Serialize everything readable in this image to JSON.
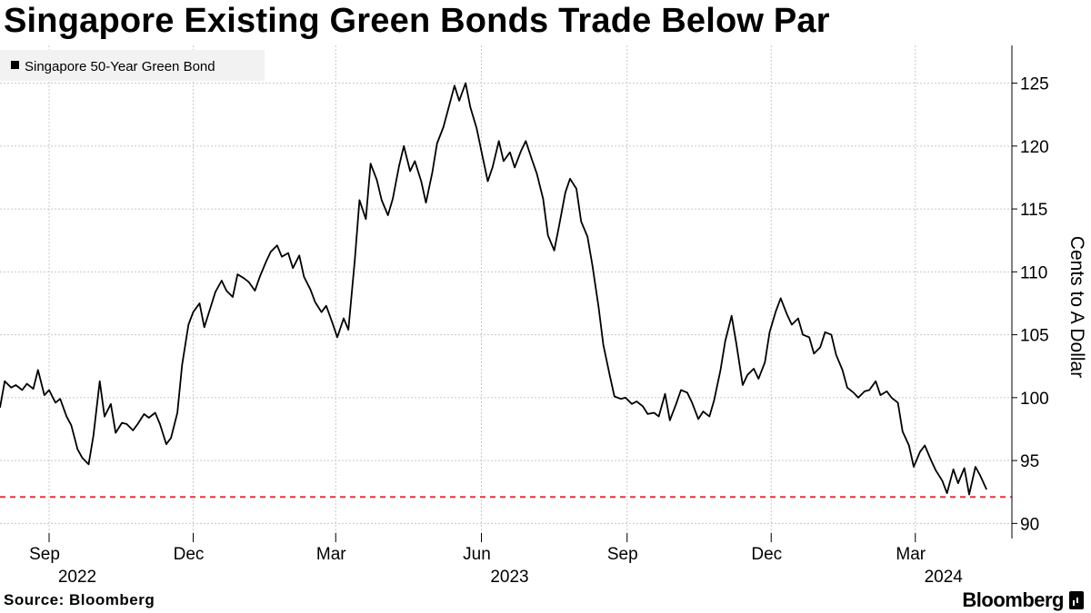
{
  "title": "Singapore Existing Green Bonds Trade Below Par",
  "source": "Source: Bloomberg",
  "brand": "Bloomberg",
  "colors": {
    "line": "#000000",
    "reference": "#e0393e",
    "grid": "#c8c8c8",
    "legend_bg": "#f2f2f2"
  },
  "chart_data": {
    "type": "line",
    "title": "Singapore Existing Green Bonds Trade Below Par",
    "ylabel": "Cents to A Dollar",
    "y_axis_position": "right",
    "ylim": [
      88.8,
      128
    ],
    "yticks": [
      90,
      95,
      100,
      105,
      110,
      115,
      120,
      125
    ],
    "xlim": [
      "2022-08-01",
      "2024-05-01"
    ],
    "month_ticks": [
      {
        "label": "Sep",
        "date": "2022-09-01"
      },
      {
        "label": "Dec",
        "date": "2022-12-01"
      },
      {
        "label": "Mar",
        "date": "2023-03-01"
      },
      {
        "label": "Jun",
        "date": "2023-06-01"
      },
      {
        "label": "Sep",
        "date": "2023-09-01"
      },
      {
        "label": "Dec",
        "date": "2023-12-01"
      },
      {
        "label": "Mar",
        "date": "2024-03-01"
      }
    ],
    "year_ticks": [
      {
        "label": "2022",
        "date": "2022-09-01"
      },
      {
        "label": "2023",
        "date": "2023-06-01"
      },
      {
        "label": "2024",
        "date": "2024-03-01"
      }
    ],
    "grid": true,
    "legend_position": "top-left",
    "reference_line": {
      "y": 92.1,
      "style": "dashed"
    },
    "series": [
      {
        "name": "Singapore 50-Year Green Bond",
        "points": [
          [
            "2022-08-01",
            99.2
          ],
          [
            "2022-08-04",
            101.3
          ],
          [
            "2022-08-08",
            100.8
          ],
          [
            "2022-08-11",
            101.0
          ],
          [
            "2022-08-15",
            100.6
          ],
          [
            "2022-08-18",
            101.1
          ],
          [
            "2022-08-22",
            100.7
          ],
          [
            "2022-08-25",
            102.2
          ],
          [
            "2022-08-29",
            100.2
          ],
          [
            "2022-09-01",
            100.6
          ],
          [
            "2022-09-05",
            99.6
          ],
          [
            "2022-09-08",
            99.9
          ],
          [
            "2022-09-12",
            98.5
          ],
          [
            "2022-09-15",
            97.8
          ],
          [
            "2022-09-19",
            95.9
          ],
          [
            "2022-09-22",
            95.2
          ],
          [
            "2022-09-26",
            94.7
          ],
          [
            "2022-09-29",
            97.0
          ],
          [
            "2022-10-03",
            101.3
          ],
          [
            "2022-10-06",
            98.5
          ],
          [
            "2022-10-10",
            99.5
          ],
          [
            "2022-10-13",
            97.2
          ],
          [
            "2022-10-17",
            98.0
          ],
          [
            "2022-10-20",
            97.9
          ],
          [
            "2022-10-24",
            97.4
          ],
          [
            "2022-10-27",
            97.9
          ],
          [
            "2022-10-31",
            98.7
          ],
          [
            "2022-11-03",
            98.4
          ],
          [
            "2022-11-07",
            98.8
          ],
          [
            "2022-11-10",
            97.9
          ],
          [
            "2022-11-14",
            96.3
          ],
          [
            "2022-11-17",
            96.8
          ],
          [
            "2022-11-21",
            98.8
          ],
          [
            "2022-11-24",
            102.6
          ],
          [
            "2022-11-28",
            105.8
          ],
          [
            "2022-12-01",
            106.8
          ],
          [
            "2022-12-05",
            107.5
          ],
          [
            "2022-12-08",
            105.6
          ],
          [
            "2022-12-12",
            107.2
          ],
          [
            "2022-12-15",
            108.4
          ],
          [
            "2022-12-19",
            109.3
          ],
          [
            "2022-12-22",
            108.5
          ],
          [
            "2022-12-26",
            108.0
          ],
          [
            "2022-12-29",
            109.8
          ],
          [
            "2023-01-02",
            109.5
          ],
          [
            "2023-01-05",
            109.2
          ],
          [
            "2023-01-09",
            108.5
          ],
          [
            "2023-01-12",
            109.6
          ],
          [
            "2023-01-16",
            110.8
          ],
          [
            "2023-01-19",
            111.6
          ],
          [
            "2023-01-23",
            112.1
          ],
          [
            "2023-01-26",
            111.2
          ],
          [
            "2023-01-30",
            111.5
          ],
          [
            "2023-02-02",
            110.3
          ],
          [
            "2023-02-06",
            111.3
          ],
          [
            "2023-02-09",
            109.6
          ],
          [
            "2023-02-13",
            108.6
          ],
          [
            "2023-02-16",
            107.6
          ],
          [
            "2023-02-20",
            106.8
          ],
          [
            "2023-02-23",
            107.3
          ],
          [
            "2023-02-27",
            105.9
          ],
          [
            "2023-03-02",
            104.8
          ],
          [
            "2023-03-06",
            106.3
          ],
          [
            "2023-03-09",
            105.4
          ],
          [
            "2023-03-13",
            110.9
          ],
          [
            "2023-03-16",
            115.7
          ],
          [
            "2023-03-20",
            114.2
          ],
          [
            "2023-03-23",
            118.6
          ],
          [
            "2023-03-27",
            117.3
          ],
          [
            "2023-03-30",
            115.7
          ],
          [
            "2023-04-03",
            114.5
          ],
          [
            "2023-04-06",
            115.8
          ],
          [
            "2023-04-10",
            118.4
          ],
          [
            "2023-04-13",
            120.0
          ],
          [
            "2023-04-17",
            118.0
          ],
          [
            "2023-04-20",
            118.8
          ],
          [
            "2023-04-24",
            117.2
          ],
          [
            "2023-04-27",
            115.5
          ],
          [
            "2023-05-01",
            117.9
          ],
          [
            "2023-05-04",
            120.2
          ],
          [
            "2023-05-08",
            121.5
          ],
          [
            "2023-05-11",
            122.9
          ],
          [
            "2023-05-15",
            124.8
          ],
          [
            "2023-05-18",
            123.6
          ],
          [
            "2023-05-22",
            125.0
          ],
          [
            "2023-05-25",
            123.1
          ],
          [
            "2023-05-29",
            121.4
          ],
          [
            "2023-06-01",
            119.6
          ],
          [
            "2023-06-05",
            117.2
          ],
          [
            "2023-06-08",
            118.3
          ],
          [
            "2023-06-12",
            120.4
          ],
          [
            "2023-06-15",
            118.8
          ],
          [
            "2023-06-19",
            119.5
          ],
          [
            "2023-06-22",
            118.3
          ],
          [
            "2023-06-26",
            119.6
          ],
          [
            "2023-06-29",
            120.4
          ],
          [
            "2023-07-03",
            118.9
          ],
          [
            "2023-07-06",
            117.8
          ],
          [
            "2023-07-10",
            115.8
          ],
          [
            "2023-07-13",
            112.9
          ],
          [
            "2023-07-17",
            111.7
          ],
          [
            "2023-07-20",
            113.6
          ],
          [
            "2023-07-24",
            116.3
          ],
          [
            "2023-07-27",
            117.4
          ],
          [
            "2023-07-31",
            116.6
          ],
          [
            "2023-08-03",
            114.0
          ],
          [
            "2023-08-07",
            112.8
          ],
          [
            "2023-08-10",
            110.6
          ],
          [
            "2023-08-14",
            107.2
          ],
          [
            "2023-08-17",
            104.2
          ],
          [
            "2023-08-21",
            101.8
          ],
          [
            "2023-08-24",
            100.1
          ],
          [
            "2023-08-28",
            99.9
          ],
          [
            "2023-08-31",
            100.0
          ],
          [
            "2023-09-04",
            99.5
          ],
          [
            "2023-09-07",
            99.7
          ],
          [
            "2023-09-11",
            99.3
          ],
          [
            "2023-09-14",
            98.7
          ],
          [
            "2023-09-18",
            98.8
          ],
          [
            "2023-09-21",
            98.5
          ],
          [
            "2023-09-25",
            100.3
          ],
          [
            "2023-09-28",
            98.2
          ],
          [
            "2023-10-02",
            99.5
          ],
          [
            "2023-10-05",
            100.6
          ],
          [
            "2023-10-09",
            100.4
          ],
          [
            "2023-10-12",
            99.6
          ],
          [
            "2023-10-16",
            98.3
          ],
          [
            "2023-10-19",
            98.9
          ],
          [
            "2023-10-23",
            98.5
          ],
          [
            "2023-10-26",
            99.8
          ],
          [
            "2023-10-30",
            102.2
          ],
          [
            "2023-11-02",
            104.5
          ],
          [
            "2023-11-06",
            106.5
          ],
          [
            "2023-11-09",
            104.3
          ],
          [
            "2023-11-13",
            101.0
          ],
          [
            "2023-11-16",
            101.8
          ],
          [
            "2023-11-20",
            102.3
          ],
          [
            "2023-11-23",
            101.5
          ],
          [
            "2023-11-27",
            102.8
          ],
          [
            "2023-11-30",
            105.2
          ],
          [
            "2023-12-04",
            106.9
          ],
          [
            "2023-12-07",
            107.9
          ],
          [
            "2023-12-11",
            106.6
          ],
          [
            "2023-12-14",
            105.8
          ],
          [
            "2023-12-18",
            106.3
          ],
          [
            "2023-12-21",
            105.0
          ],
          [
            "2023-12-25",
            104.8
          ],
          [
            "2023-12-28",
            103.5
          ],
          [
            "2024-01-01",
            104.0
          ],
          [
            "2024-01-04",
            105.2
          ],
          [
            "2024-01-08",
            105.0
          ],
          [
            "2024-01-11",
            103.4
          ],
          [
            "2024-01-15",
            102.2
          ],
          [
            "2024-01-18",
            100.8
          ],
          [
            "2024-01-22",
            100.4
          ],
          [
            "2024-01-25",
            100.0
          ],
          [
            "2024-01-29",
            100.5
          ],
          [
            "2024-02-01",
            100.6
          ],
          [
            "2024-02-05",
            101.3
          ],
          [
            "2024-02-08",
            100.2
          ],
          [
            "2024-02-12",
            100.5
          ],
          [
            "2024-02-15",
            100.0
          ],
          [
            "2024-02-19",
            99.6
          ],
          [
            "2024-02-22",
            97.3
          ],
          [
            "2024-02-26",
            96.2
          ],
          [
            "2024-02-29",
            94.5
          ],
          [
            "2024-03-04",
            95.7
          ],
          [
            "2024-03-07",
            96.2
          ],
          [
            "2024-03-11",
            95.0
          ],
          [
            "2024-03-14",
            94.2
          ],
          [
            "2024-03-18",
            93.4
          ],
          [
            "2024-03-21",
            92.4
          ],
          [
            "2024-03-25",
            94.3
          ],
          [
            "2024-03-28",
            93.2
          ],
          [
            "2024-04-01",
            94.4
          ],
          [
            "2024-04-04",
            92.3
          ],
          [
            "2024-04-08",
            94.5
          ],
          [
            "2024-04-11",
            93.8
          ],
          [
            "2024-04-15",
            92.7
          ]
        ]
      }
    ]
  }
}
